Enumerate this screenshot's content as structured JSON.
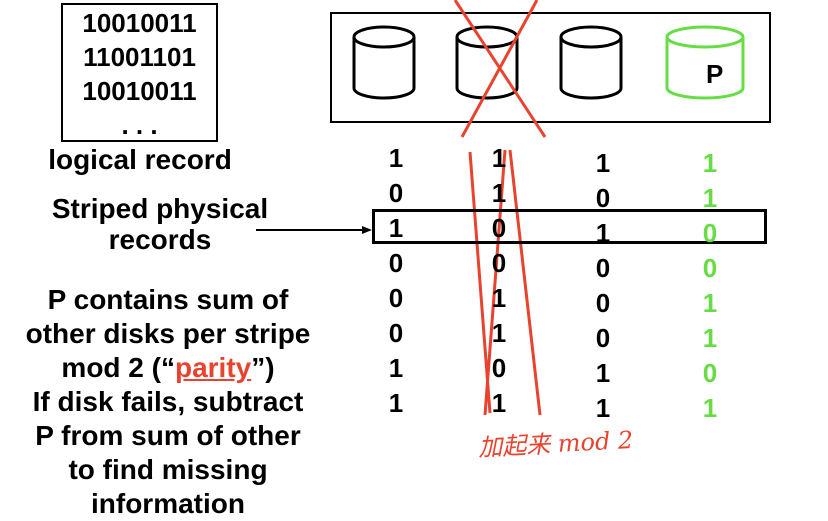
{
  "logical_record": {
    "rows": [
      "10010011",
      "11001101",
      "10010011",
      ". . ."
    ],
    "label": "logical record"
  },
  "striped_label": [
    "Striped physical",
    "records"
  ],
  "parity_disk_label": "P",
  "columns": [
    {
      "bits": [
        "1",
        "0",
        "1",
        "0",
        "0",
        "0",
        "1",
        "1"
      ],
      "color": "#000000"
    },
    {
      "bits": [
        "1",
        "1",
        "0",
        "0",
        "1",
        "1",
        "0",
        "1"
      ],
      "color": "#000000"
    },
    {
      "bits": [
        "1",
        "0",
        "1",
        "0",
        "0",
        "0",
        "1",
        "1"
      ],
      "color": "#000000"
    },
    {
      "bits": [
        "1",
        "1",
        "0",
        "0",
        "1",
        "1",
        "0",
        "1"
      ],
      "color": "#66dd44"
    }
  ],
  "explanation": {
    "line1": "P contains sum of",
    "line2": "other disks per stripe",
    "line3_prefix": "mod 2 (“",
    "line3_parity": "parity",
    "line3_suffix": "”)",
    "line4": "If disk fails, subtract",
    "line5": "P from sum of other",
    "line6": "to find missing information"
  },
  "handwritten_note": "加起来 mod 2",
  "colors": {
    "parity_green": "#66dd44",
    "cross_red": "#e8432f",
    "handwriting_blue": "#3a6fb0"
  }
}
